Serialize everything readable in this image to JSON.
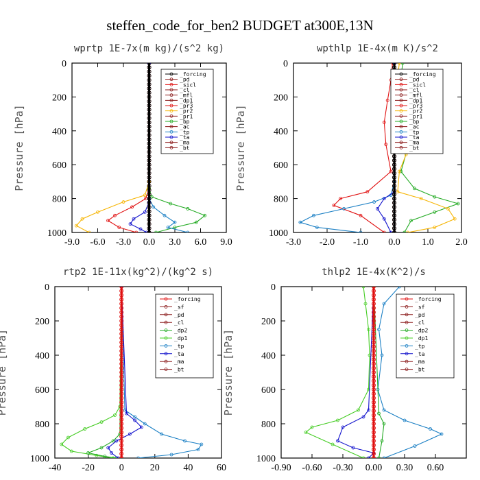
{
  "figure_title": "steffen_code_for_ben2  BUDGET at300E,13N",
  "colors": {
    "frame": "#000000",
    "orange": "#f6b400",
    "green": "#22aa22",
    "red": "#e01010",
    "light_green": "#44cc22",
    "blue": "#1010cc",
    "teal": "#1a7fc4",
    "cyan": "#00dddd",
    "purple": "#7744cc",
    "pink": "#cc66cc",
    "dark_red": "#8b1a1a"
  },
  "chart_data": [
    {
      "type": "line",
      "title": "wprtp  1E-7x(m kg)/(s^2 kg)",
      "ylabel": "Pressure [hPa]",
      "xlim": [
        -9,
        9
      ],
      "ylim": [
        1000,
        0
      ],
      "xticks": [
        "-9.0",
        "-6.0",
        "-3.0",
        "0.0",
        "3.0",
        "6.0",
        "9.0"
      ],
      "yticks": [
        "0",
        "200",
        "400",
        "600",
        "800",
        "1000"
      ],
      "legend": [
        "_forcing",
        "_pd",
        "_sicl",
        "_cl",
        "_mfl",
        "_dp1",
        "_pr3",
        "_pr2",
        "_pr1",
        "_bp",
        "_ac",
        "_tp",
        "_ta",
        "_ma",
        "_bt"
      ],
      "legend_position": "top-right",
      "series": [
        {
          "name": "_pr2",
          "color": "#f6b400",
          "x": [
            0,
            0,
            -0.5,
            -3.0,
            -6.0,
            -7.8,
            -8.5,
            -7.0
          ],
          "y": [
            0,
            700,
            780,
            820,
            880,
            920,
            960,
            1000
          ]
        },
        {
          "name": "_pr3",
          "color": "#e01010",
          "x": [
            0,
            0,
            -0.4,
            -2.0,
            -4.0,
            -4.8,
            -3.5,
            -1.5
          ],
          "y": [
            0,
            740,
            800,
            850,
            900,
            930,
            970,
            1000
          ]
        },
        {
          "name": "_bp",
          "color": "#22aa22",
          "x": [
            0,
            0,
            0.3,
            2.5,
            4.5,
            6.5,
            5.5,
            3.0,
            0.8
          ],
          "y": [
            0,
            740,
            790,
            830,
            860,
            900,
            940,
            970,
            1000
          ]
        },
        {
          "name": "_tp",
          "color": "#1a7fc4",
          "x": [
            0,
            0,
            0.5,
            1.8,
            3.0,
            2.2,
            4.5
          ],
          "y": [
            0,
            800,
            850,
            900,
            940,
            970,
            1000
          ]
        },
        {
          "name": "_ta",
          "color": "#1010cc",
          "x": [
            0,
            0,
            -0.5,
            -1.8,
            -2.2,
            -1.0,
            -0.3
          ],
          "y": [
            0,
            820,
            880,
            920,
            950,
            980,
            1000
          ]
        },
        {
          "name": "_mfl",
          "color": "#8b1a1a",
          "x": [
            0,
            0
          ],
          "y": [
            0,
            1000
          ]
        },
        {
          "name": "_forcing",
          "color": "#000000",
          "x": [
            0,
            0
          ],
          "y": [
            0,
            1000
          ]
        }
      ]
    },
    {
      "type": "line",
      "title": "wpthlp  1E-4x(m K)/s^2",
      "ylabel": "Pressure [hPa]",
      "xlim": [
        -3,
        2
      ],
      "ylim": [
        1000,
        0
      ],
      "xticks": [
        "-3.0",
        "-2.0",
        "-1.0",
        "0.0",
        "1.0",
        "2.0"
      ],
      "yticks": [
        "0",
        "200",
        "400",
        "600",
        "800",
        "1000"
      ],
      "legend": [
        "_forcing",
        "_pd",
        "_sicl",
        "_cl",
        "_mfl",
        "_dp1",
        "_pr3",
        "_pr2",
        "_pr1",
        "_bp",
        "_ac",
        "_tp",
        "_ta",
        "_ma",
        "_bt"
      ],
      "legend_position": "top-right",
      "series": [
        {
          "name": "_bp",
          "color": "#22aa22",
          "x": [
            0.25,
            0.2,
            0.3,
            0.5,
            0.7,
            0.6,
            0.4,
            0.2,
            0.6,
            1.2,
            1.9,
            1.2,
            0.5,
            0.3
          ],
          "y": [
            0,
            80,
            150,
            220,
            320,
            400,
            500,
            640,
            740,
            790,
            830,
            880,
            930,
            1000
          ]
        },
        {
          "name": "_pr2",
          "color": "#f6b400",
          "x": [
            0.15,
            0.1,
            0.2,
            0.35,
            0.45,
            0.35,
            0.15,
            0.1,
            0.8,
            1.6,
            1.8,
            1.2,
            0.4
          ],
          "y": [
            0,
            80,
            180,
            300,
            420,
            540,
            640,
            760,
            800,
            860,
            920,
            970,
            1000
          ]
        },
        {
          "name": "_pr3",
          "color": "#e01010",
          "x": [
            -0.05,
            -0.1,
            -0.2,
            -0.3,
            -0.25,
            -0.1,
            -0.8,
            -1.6,
            -1.8,
            -1.0,
            -0.3
          ],
          "y": [
            0,
            100,
            220,
            350,
            480,
            640,
            760,
            800,
            840,
            900,
            1000
          ]
        },
        {
          "name": "_tp",
          "color": "#1a7fc4",
          "x": [
            0,
            0,
            -0.1,
            -0.6,
            -1.5,
            -2.4,
            -2.8,
            -2.3,
            -1.0
          ],
          "y": [
            0,
            700,
            780,
            820,
            860,
            900,
            940,
            970,
            1000
          ]
        },
        {
          "name": "_ta",
          "color": "#1010cc",
          "x": [
            0,
            0,
            -0.3,
            -0.5,
            -0.3,
            -0.1
          ],
          "y": [
            0,
            760,
            800,
            860,
            920,
            1000
          ]
        },
        {
          "name": "_cl",
          "color": "#8b1a1a",
          "x": [
            0,
            0
          ],
          "y": [
            0,
            1000
          ]
        },
        {
          "name": "_forcing",
          "color": "#000000",
          "x": [
            0,
            0
          ],
          "y": [
            0,
            1000
          ]
        }
      ]
    },
    {
      "type": "line",
      "title": "rtp2  1E-11x(kg^2)/(kg^2 s)",
      "ylabel": "Pressure [hPa]",
      "xlim": [
        -40,
        60
      ],
      "ylim": [
        1000,
        0
      ],
      "xticks": [
        "-40",
        "-20",
        "0",
        "20",
        "40",
        "60"
      ],
      "yticks": [
        "0",
        "200",
        "400",
        "600",
        "800",
        "1000"
      ],
      "legend": [
        "_forcing",
        "_sf",
        "_pd",
        "_cl",
        "_dp2",
        "_dp1",
        "_tp",
        "_ta",
        "_ma",
        "_bt"
      ],
      "legend_position": "top-right",
      "series": [
        {
          "name": "_dp1",
          "color": "#44cc22",
          "x": [
            0,
            -1,
            -4,
            -12,
            -22,
            -32,
            -36,
            -30,
            -15,
            -5
          ],
          "y": [
            0,
            700,
            750,
            790,
            830,
            880,
            920,
            960,
            985,
            1000
          ]
        },
        {
          "name": "_dp2",
          "color": "#22aa22",
          "x": [
            0,
            -1,
            -5,
            -12,
            -20,
            -10,
            -3
          ],
          "y": [
            0,
            860,
            900,
            940,
            970,
            990,
            1000
          ]
        },
        {
          "name": "_tp",
          "color": "#1a7fc4",
          "x": [
            0,
            2,
            8,
            14,
            24,
            38,
            48,
            46,
            30,
            10
          ],
          "y": [
            0,
            720,
            760,
            800,
            860,
            900,
            920,
            950,
            980,
            1000
          ]
        },
        {
          "name": "_ta",
          "color": "#1010cc",
          "x": [
            0,
            3,
            8,
            12,
            5,
            -3,
            -8,
            -6,
            -2
          ],
          "y": [
            0,
            740,
            780,
            820,
            860,
            900,
            940,
            970,
            1000
          ]
        },
        {
          "name": "_forcing",
          "color": "#e01010",
          "x": [
            0,
            0
          ],
          "y": [
            0,
            1000
          ]
        }
      ]
    },
    {
      "type": "line",
      "title": "thlp2  1E-4x(K^2)/s",
      "ylabel": "Pressure [hPa]",
      "xlim": [
        -0.9,
        0.9
      ],
      "ylim": [
        1000,
        0
      ],
      "xticks": [
        "-0.90",
        "-0.60",
        "-0.30",
        "0.00",
        "0.30",
        "0.60"
      ],
      "yticks": [
        "0",
        "200",
        "400",
        "600",
        "800",
        "1000"
      ],
      "legend": [
        "_forcing",
        "_sf",
        "_pd",
        "_cl",
        "_dp2",
        "_dp1",
        "_tp",
        "_ta",
        "_ma",
        "_bt"
      ],
      "legend_position": "top-right",
      "series": [
        {
          "name": "_dp1",
          "color": "#44cc22",
          "x": [
            -0.1,
            -0.08,
            -0.05,
            -0.04,
            -0.05,
            -0.15,
            -0.35,
            -0.6,
            -0.66,
            -0.4,
            -0.1
          ],
          "y": [
            0,
            100,
            250,
            400,
            600,
            720,
            780,
            820,
            850,
            920,
            1000
          ]
        },
        {
          "name": "_tp",
          "color": "#1a7fc4",
          "x": [
            0.25,
            0.1,
            0.05,
            0.08,
            0.04,
            0.1,
            0.3,
            0.55,
            0.66,
            0.4,
            0.1
          ],
          "y": [
            0,
            100,
            250,
            400,
            600,
            720,
            780,
            830,
            860,
            930,
            1000
          ]
        },
        {
          "name": "_ta",
          "color": "#1010cc",
          "x": [
            0,
            -0.05,
            -0.1,
            -0.3,
            -0.35,
            -0.2,
            0.0,
            -0.05
          ],
          "y": [
            0,
            720,
            760,
            820,
            900,
            940,
            970,
            1000
          ]
        },
        {
          "name": "_dp2",
          "color": "#22aa22",
          "x": [
            0,
            0.05,
            0.1,
            0.08,
            0.05
          ],
          "y": [
            0,
            740,
            800,
            900,
            1000
          ]
        },
        {
          "name": "_forcing",
          "color": "#e01010",
          "x": [
            0,
            0
          ],
          "y": [
            0,
            1000
          ]
        }
      ]
    }
  ]
}
